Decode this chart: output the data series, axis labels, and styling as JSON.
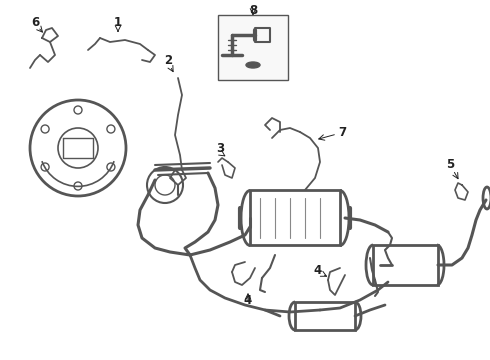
{
  "bg_color": "#ffffff",
  "lc": "#888888",
  "dc": "#555555",
  "tc": "#222222",
  "figsize": [
    4.9,
    3.6
  ],
  "dpi": 100,
  "xlim": [
    0,
    490
  ],
  "ylim": [
    0,
    360
  ]
}
